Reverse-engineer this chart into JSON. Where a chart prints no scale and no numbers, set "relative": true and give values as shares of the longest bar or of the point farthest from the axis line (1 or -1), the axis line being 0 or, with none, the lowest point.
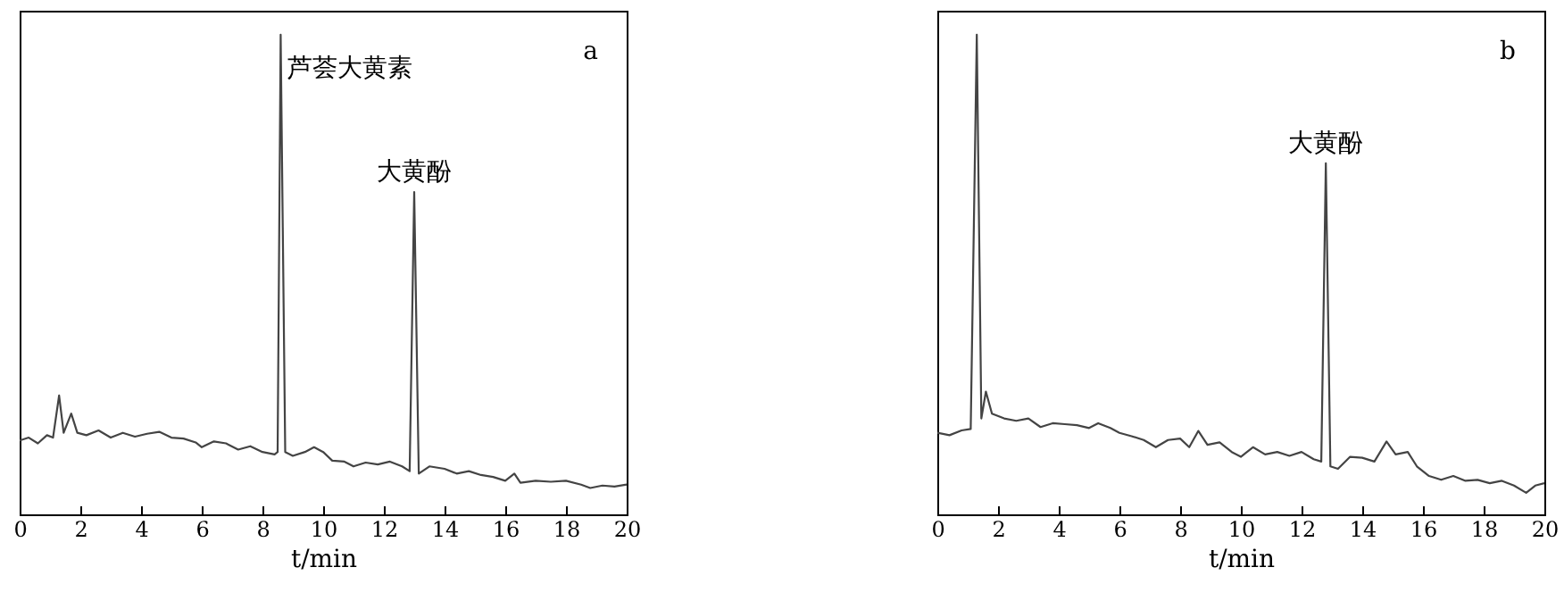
{
  "chart_data": [
    {
      "type": "line",
      "xlabel": "t/min",
      "relative": true,
      "xlim": [
        0,
        20
      ],
      "xticks": [
        0,
        2,
        4,
        6,
        8,
        10,
        12,
        14,
        16,
        18,
        20
      ],
      "annotations": [
        "a",
        {
          "text": "芦荟大黄素",
          "x": 8.6,
          "y": 1
        },
        {
          "text": "大黄酚",
          "x": 13,
          "y": 0.672
        }
      ],
      "x": [
        0,
        0.3,
        0.6,
        0.9,
        1.1,
        1.3,
        1.45,
        1.7,
        1.9,
        2.2,
        2.6,
        3,
        3.4,
        3.8,
        4.2,
        4.6,
        5,
        5.4,
        5.8,
        6,
        6.4,
        6.8,
        7.2,
        7.6,
        8,
        8.4,
        8.5,
        8.6,
        8.75,
        9,
        9.4,
        9.7,
        10,
        10.3,
        10.7,
        11,
        11.4,
        11.8,
        12.2,
        12.6,
        12.85,
        13,
        13.15,
        13.5,
        14,
        14.4,
        14.8,
        15.2,
        15.6,
        16,
        16.3,
        16.5,
        17,
        17.5,
        18,
        18.5,
        18.8,
        19.2,
        19.6,
        20
      ],
      "series": [
        {
          "color": "#444444",
          "values": [
            0.154,
            0.16,
            0.148,
            0.165,
            0.16,
            0.248,
            0.17,
            0.21,
            0.17,
            0.165,
            0.175,
            0.16,
            0.17,
            0.162,
            0.168,
            0.172,
            0.16,
            0.158,
            0.15,
            0.14,
            0.152,
            0.148,
            0.135,
            0.142,
            0.13,
            0.125,
            0.13,
            1,
            0.13,
            0.122,
            0.13,
            0.14,
            0.13,
            0.112,
            0.11,
            0.1,
            0.108,
            0.104,
            0.11,
            0.1,
            0.09,
            0.672,
            0.085,
            0.1,
            0.095,
            0.085,
            0.09,
            0.082,
            0.078,
            0.07,
            0.085,
            0.066,
            0.07,
            0.068,
            0.07,
            0.062,
            0.055,
            0.06,
            0.058,
            0.062
          ]
        }
      ]
    },
    {
      "type": "line",
      "xlabel": "t/min",
      "relative": true,
      "xlim": [
        0,
        20
      ],
      "xticks": [
        0,
        2,
        4,
        6,
        8,
        10,
        12,
        14,
        16,
        18,
        20
      ],
      "annotations": [
        "b",
        {
          "text": "大黄酚",
          "x": 12.8,
          "y": 0.732
        }
      ],
      "x": [
        0,
        0.4,
        0.8,
        1.1,
        1.3,
        1.45,
        1.6,
        1.8,
        2.2,
        2.6,
        3,
        3.4,
        3.8,
        4.2,
        4.6,
        5,
        5.3,
        5.7,
        6,
        6.4,
        6.8,
        7.2,
        7.6,
        8,
        8.3,
        8.6,
        8.9,
        9.3,
        9.7,
        10,
        10.4,
        10.8,
        11.2,
        11.6,
        12,
        12.4,
        12.65,
        12.8,
        12.95,
        13.2,
        13.6,
        14,
        14.4,
        14.8,
        15.1,
        15.5,
        15.8,
        16.2,
        16.6,
        17,
        17.4,
        17.8,
        18.2,
        18.6,
        19,
        19.4,
        19.7,
        20
      ],
      "series": [
        {
          "color": "#444444",
          "values": [
            0.17,
            0.165,
            0.175,
            0.178,
            1,
            0.2,
            0.256,
            0.21,
            0.2,
            0.195,
            0.2,
            0.182,
            0.19,
            0.188,
            0.186,
            0.18,
            0.19,
            0.18,
            0.17,
            0.163,
            0.155,
            0.14,
            0.155,
            0.158,
            0.14,
            0.174,
            0.145,
            0.15,
            0.13,
            0.12,
            0.14,
            0.125,
            0.13,
            0.122,
            0.13,
            0.115,
            0.11,
            0.732,
            0.1,
            0.095,
            0.12,
            0.118,
            0.11,
            0.152,
            0.125,
            0.13,
            0.1,
            0.08,
            0.072,
            0.08,
            0.07,
            0.072,
            0.065,
            0.07,
            0.06,
            0.045,
            0.06,
            0.065
          ]
        }
      ]
    }
  ]
}
